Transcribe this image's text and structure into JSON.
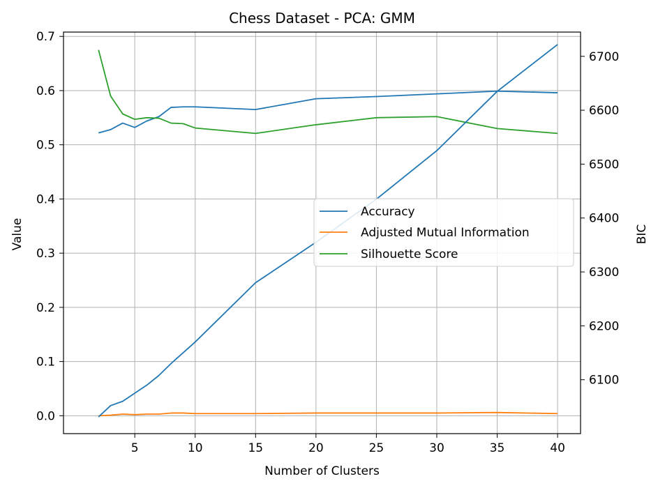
{
  "chart_data": {
    "type": "line",
    "title": "Chess Dataset - PCA: GMM",
    "xlabel": "Number of Clusters",
    "ylabel": "Value",
    "y2label": "BIC",
    "xlim": [
      -0.9,
      41.9
    ],
    "ylim": [
      -0.033,
      0.708
    ],
    "y2lim": [
      6000,
      6745
    ],
    "x_ticks": [
      5,
      10,
      15,
      20,
      25,
      30,
      35,
      40
    ],
    "y_ticks": [
      0.0,
      0.1,
      0.2,
      0.3,
      0.4,
      0.5,
      0.6,
      0.7
    ],
    "y2_ticks": [
      6100,
      6200,
      6300,
      6400,
      6500,
      6600,
      6700
    ],
    "grid": true,
    "legend_position": "center-right",
    "series": [
      {
        "name": "Accuracy",
        "axis": "left",
        "color": "#1f77b4",
        "x": [
          2,
          3,
          4,
          5,
          6,
          7,
          8,
          9,
          10,
          15,
          20,
          25,
          30,
          35,
          40
        ],
        "values": [
          0.522,
          0.528,
          0.54,
          0.532,
          0.544,
          0.552,
          0.569,
          0.57,
          0.57,
          0.565,
          0.585,
          0.589,
          0.594,
          0.599,
          0.596
        ]
      },
      {
        "name": "Adjusted Mutual Information",
        "axis": "left",
        "color": "#ff7f0e",
        "x": [
          2,
          3,
          4,
          5,
          6,
          7,
          8,
          9,
          10,
          15,
          20,
          25,
          30,
          35,
          40
        ],
        "values": [
          0.0,
          0.001,
          0.003,
          0.002,
          0.003,
          0.003,
          0.005,
          0.005,
          0.004,
          0.004,
          0.005,
          0.005,
          0.005,
          0.006,
          0.004
        ]
      },
      {
        "name": "Silhouette Score",
        "axis": "left",
        "color": "#2ca02c",
        "x": [
          2,
          3,
          4,
          5,
          6,
          7,
          8,
          9,
          10,
          15,
          20,
          25,
          30,
          35,
          40
        ],
        "values": [
          0.675,
          0.59,
          0.557,
          0.547,
          0.55,
          0.549,
          0.54,
          0.539,
          0.531,
          0.521,
          0.537,
          0.55,
          0.552,
          0.53,
          0.521
        ]
      },
      {
        "axis": "right",
        "color": "#1f77b4",
        "x": [
          2,
          3,
          4,
          5,
          6,
          7,
          8,
          9,
          10,
          15,
          20,
          25,
          30,
          35,
          40
        ],
        "values": [
          6031,
          6052,
          6060,
          6075,
          6090,
          6108,
          6130,
          6150,
          6170,
          6280,
          6355,
          6435,
          6525,
          6635,
          6722
        ]
      }
    ]
  }
}
